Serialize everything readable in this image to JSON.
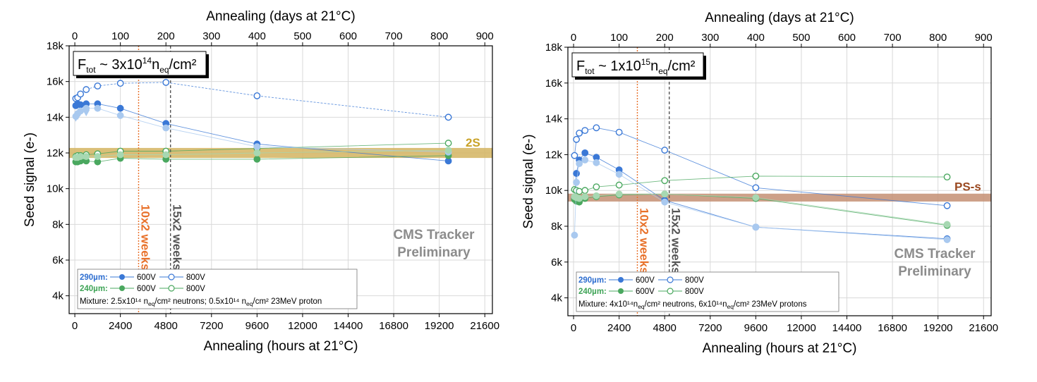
{
  "colors": {
    "dark_blue": "#3a78d6",
    "light_blue": "#a9c9ef",
    "dark_green": "#4aa85f",
    "light_green": "#a7d8b2",
    "orange": "#e8712a",
    "grey_dash": "#555555",
    "band_2S": "#d4b460",
    "band_PSs": "#c48f73",
    "label_2S": "#c9a227",
    "label_PSs": "#9b4a22",
    "label_290": "#2f6fd0",
    "label_240": "#3fa457"
  },
  "chart_data": [
    {
      "type": "scatter",
      "x_top_label": "Annealing (days at 21°C)",
      "x_top_ticks": [
        "0",
        "100",
        "200",
        "300",
        "400",
        "500",
        "600",
        "700",
        "800",
        "900"
      ],
      "x_label": "Annealing (hours at 21°C)",
      "x_ticks": [
        "0",
        "2400",
        "4800",
        "7200",
        "9600",
        "12000",
        "14400",
        "16800",
        "19200",
        "21600"
      ],
      "xlim": [
        -300,
        22000
      ],
      "y_label": "Seed signal (e-)",
      "y_ticks": [
        "4k",
        "6k",
        "8k",
        "10k",
        "12k",
        "14k",
        "16k",
        "18k"
      ],
      "ylim": [
        3000,
        18000
      ],
      "grid": true,
      "fluence": {
        "prefix": "F",
        "sub": "tot",
        "mid": " ~ 3x10",
        "sup": "14",
        "n": "n",
        "nsub": "eq",
        "tail": "/cm²"
      },
      "band": {
        "label": "2S",
        "y_center": 12000,
        "half_width": 280
      },
      "vlines": [
        {
          "x": 3360,
          "label": "10x2 weeks",
          "style": "orange"
        },
        {
          "x": 5040,
          "label": "15x2 weeks",
          "style": "grey"
        }
      ],
      "watermark": [
        "CMS Tracker",
        "Preliminary"
      ],
      "legend": {
        "row1_label": "290µm:",
        "row2_label": "240µm:",
        "v600": "600V",
        "v800": "800V",
        "mixture": "Mixture: 2.5x10¹⁴ n_eq/cm² neutrons; 0.5x10¹⁴ n_eq/cm² 23MeV proton"
      },
      "series": [
        {
          "name": "290µm 600V",
          "color": "dark_blue",
          "fill": true,
          "x": [
            50,
            150,
            300,
            600,
            1200,
            2400,
            4800,
            9600,
            19680
          ],
          "y": [
            14650,
            14750,
            14700,
            14750,
            14750,
            14500,
            13650,
            12500,
            11550
          ]
        },
        {
          "name": "290µm 800V",
          "color": "dark_blue",
          "fill": false,
          "dashed": true,
          "x": [
            50,
            150,
            300,
            600,
            1200,
            2400,
            4800,
            9600,
            19680
          ],
          "y": [
            15050,
            15100,
            15300,
            15550,
            15750,
            15900,
            15950,
            15200,
            14000
          ]
        },
        {
          "name": "240µm 600V",
          "color": "dark_green",
          "fill": true,
          "x": [
            50,
            150,
            300,
            600,
            1200,
            2400,
            4800,
            9600,
            19680
          ],
          "y": [
            11500,
            11500,
            11550,
            11550,
            11500,
            11700,
            11650,
            11650,
            11850
          ]
        },
        {
          "name": "240µm 800V",
          "color": "dark_green",
          "fill": false,
          "x": [
            50,
            150,
            300,
            600,
            1200,
            2400,
            4800,
            9600,
            19680
          ],
          "y": [
            11800,
            11850,
            11850,
            11900,
            11950,
            12100,
            12100,
            12250,
            12550
          ]
        },
        {
          "name": "light 290µm",
          "color": "light_blue",
          "fill": true,
          "x": [
            50,
            150,
            300,
            600,
            1200,
            2400,
            4800,
            9600,
            19680
          ],
          "y": [
            14050,
            14200,
            14350,
            14500,
            14500,
            14100,
            13400,
            12350,
            12050
          ]
        },
        {
          "name": "light 240µm",
          "color": "light_green",
          "fill": true,
          "x": [
            50,
            150,
            300,
            600,
            1200,
            2400,
            4800,
            9600,
            19680
          ],
          "y": [
            11750,
            11750,
            11800,
            11800,
            11800,
            11900,
            11900,
            12000,
            12150
          ]
        }
      ],
      "triangles": {
        "color": "light_blue",
        "x": [
          50,
          150,
          600
        ],
        "y": [
          13950,
          14050,
          14250
        ]
      }
    },
    {
      "type": "scatter",
      "x_top_label": "Annealing (days at 21°C)",
      "x_top_ticks": [
        "0",
        "100",
        "200",
        "300",
        "400",
        "500",
        "600",
        "700",
        "800",
        "900"
      ],
      "x_label": "Annealing (hours at 21°C)",
      "x_ticks": [
        "0",
        "2400",
        "4800",
        "7200",
        "9600",
        "12000",
        "14400",
        "16800",
        "19200",
        "21600"
      ],
      "xlim": [
        -300,
        22000
      ],
      "y_label": "Seed signal (e-)",
      "y_ticks": [
        "4k",
        "6k",
        "8k",
        "10k",
        "12k",
        "14k",
        "16k",
        "18k"
      ],
      "ylim": [
        3000,
        18000
      ],
      "grid": true,
      "fluence": {
        "prefix": "F",
        "sub": "tot",
        "mid": " ~ 1x10",
        "sup": "15",
        "n": "n",
        "nsub": "eq",
        "tail": "/cm²"
      },
      "band": {
        "label": "PS-s",
        "y_center": 9600,
        "half_width": 220
      },
      "vlines": [
        {
          "x": 3360,
          "label": "10x2 weeks",
          "style": "orange"
        },
        {
          "x": 5040,
          "label": "15x2 weeks",
          "style": "grey"
        }
      ],
      "watermark": [
        "CMS Tracker",
        "Preliminary"
      ],
      "legend": {
        "row1_label": "290µm:",
        "row2_label": "240µm:",
        "v600": "600V",
        "v800": "800V",
        "mixture": "Mixture: 4x10¹⁴n_eq/cm² neutrons, 6x10¹⁴n_eq/cm² 23MeV protons"
      },
      "series": [
        {
          "name": "290µm 600V",
          "color": "dark_blue",
          "fill": true,
          "x": [
            50,
            150,
            300,
            600,
            1200,
            2400,
            4800,
            9600,
            19680
          ],
          "y": [
            9600,
            10950,
            11700,
            12100,
            11850,
            11150,
            9450,
            7950,
            7300
          ]
        },
        {
          "name": "290µm 800V",
          "color": "dark_blue",
          "fill": false,
          "x": [
            50,
            150,
            300,
            600,
            1200,
            2400,
            4800,
            9600,
            19680
          ],
          "y": [
            11950,
            12850,
            13200,
            13350,
            13500,
            13250,
            12250,
            10150,
            9150
          ]
        },
        {
          "name": "240µm 600V",
          "color": "dark_green",
          "fill": true,
          "x": [
            50,
            150,
            300,
            600,
            1200,
            2400,
            4800,
            9600,
            19680
          ],
          "y": [
            9500,
            9400,
            9350,
            9550,
            9650,
            9750,
            9800,
            9550,
            8050
          ]
        },
        {
          "name": "240µm 800V",
          "color": "dark_green",
          "fill": false,
          "x": [
            50,
            150,
            300,
            600,
            1200,
            2400,
            4800,
            9600,
            19680
          ],
          "y": [
            10050,
            10000,
            9950,
            10000,
            10200,
            10300,
            10550,
            10800,
            10750
          ]
        },
        {
          "name": "light 290µm",
          "color": "light_blue",
          "fill": true,
          "x": [
            50,
            150,
            300,
            600,
            1200,
            2400,
            4800,
            9600,
            19680
          ],
          "y": [
            7500,
            10450,
            11500,
            11700,
            11550,
            10900,
            9350,
            7950,
            7250
          ]
        },
        {
          "name": "light 240µm",
          "color": "light_green",
          "fill": true,
          "x": [
            50,
            150,
            300,
            600,
            1200,
            2400,
            4800,
            9600,
            19680
          ],
          "y": [
            9650,
            9600,
            9550,
            9650,
            9700,
            9800,
            9800,
            9600,
            8100
          ]
        }
      ],
      "triangles": null
    }
  ]
}
